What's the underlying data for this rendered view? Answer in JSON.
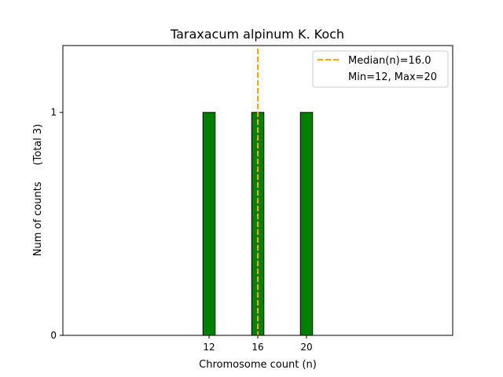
{
  "chart_data": {
    "type": "bar",
    "title": "Taraxacum alpinum K. Koch",
    "xlabel": "Chromosome count (n)",
    "ylabel": "Num of counts     (Total 3)",
    "xlim": [
      0,
      32
    ],
    "ylim": [
      0,
      1.3
    ],
    "bar_width": 1,
    "baseline_end": 24,
    "x": [
      12,
      16,
      20
    ],
    "values": [
      1,
      1,
      1
    ],
    "xticks": [
      12,
      16,
      20
    ],
    "yticks": [
      0,
      1
    ],
    "median": 16.0,
    "bar_color": "#008000",
    "median_color": "#FFA500",
    "grid": false,
    "legend_position": "top-right",
    "legend": [
      {
        "label": "Median(n)=16.0",
        "style": "dashed"
      },
      {
        "label": "Min=12, Max=20",
        "style": "none"
      }
    ]
  }
}
